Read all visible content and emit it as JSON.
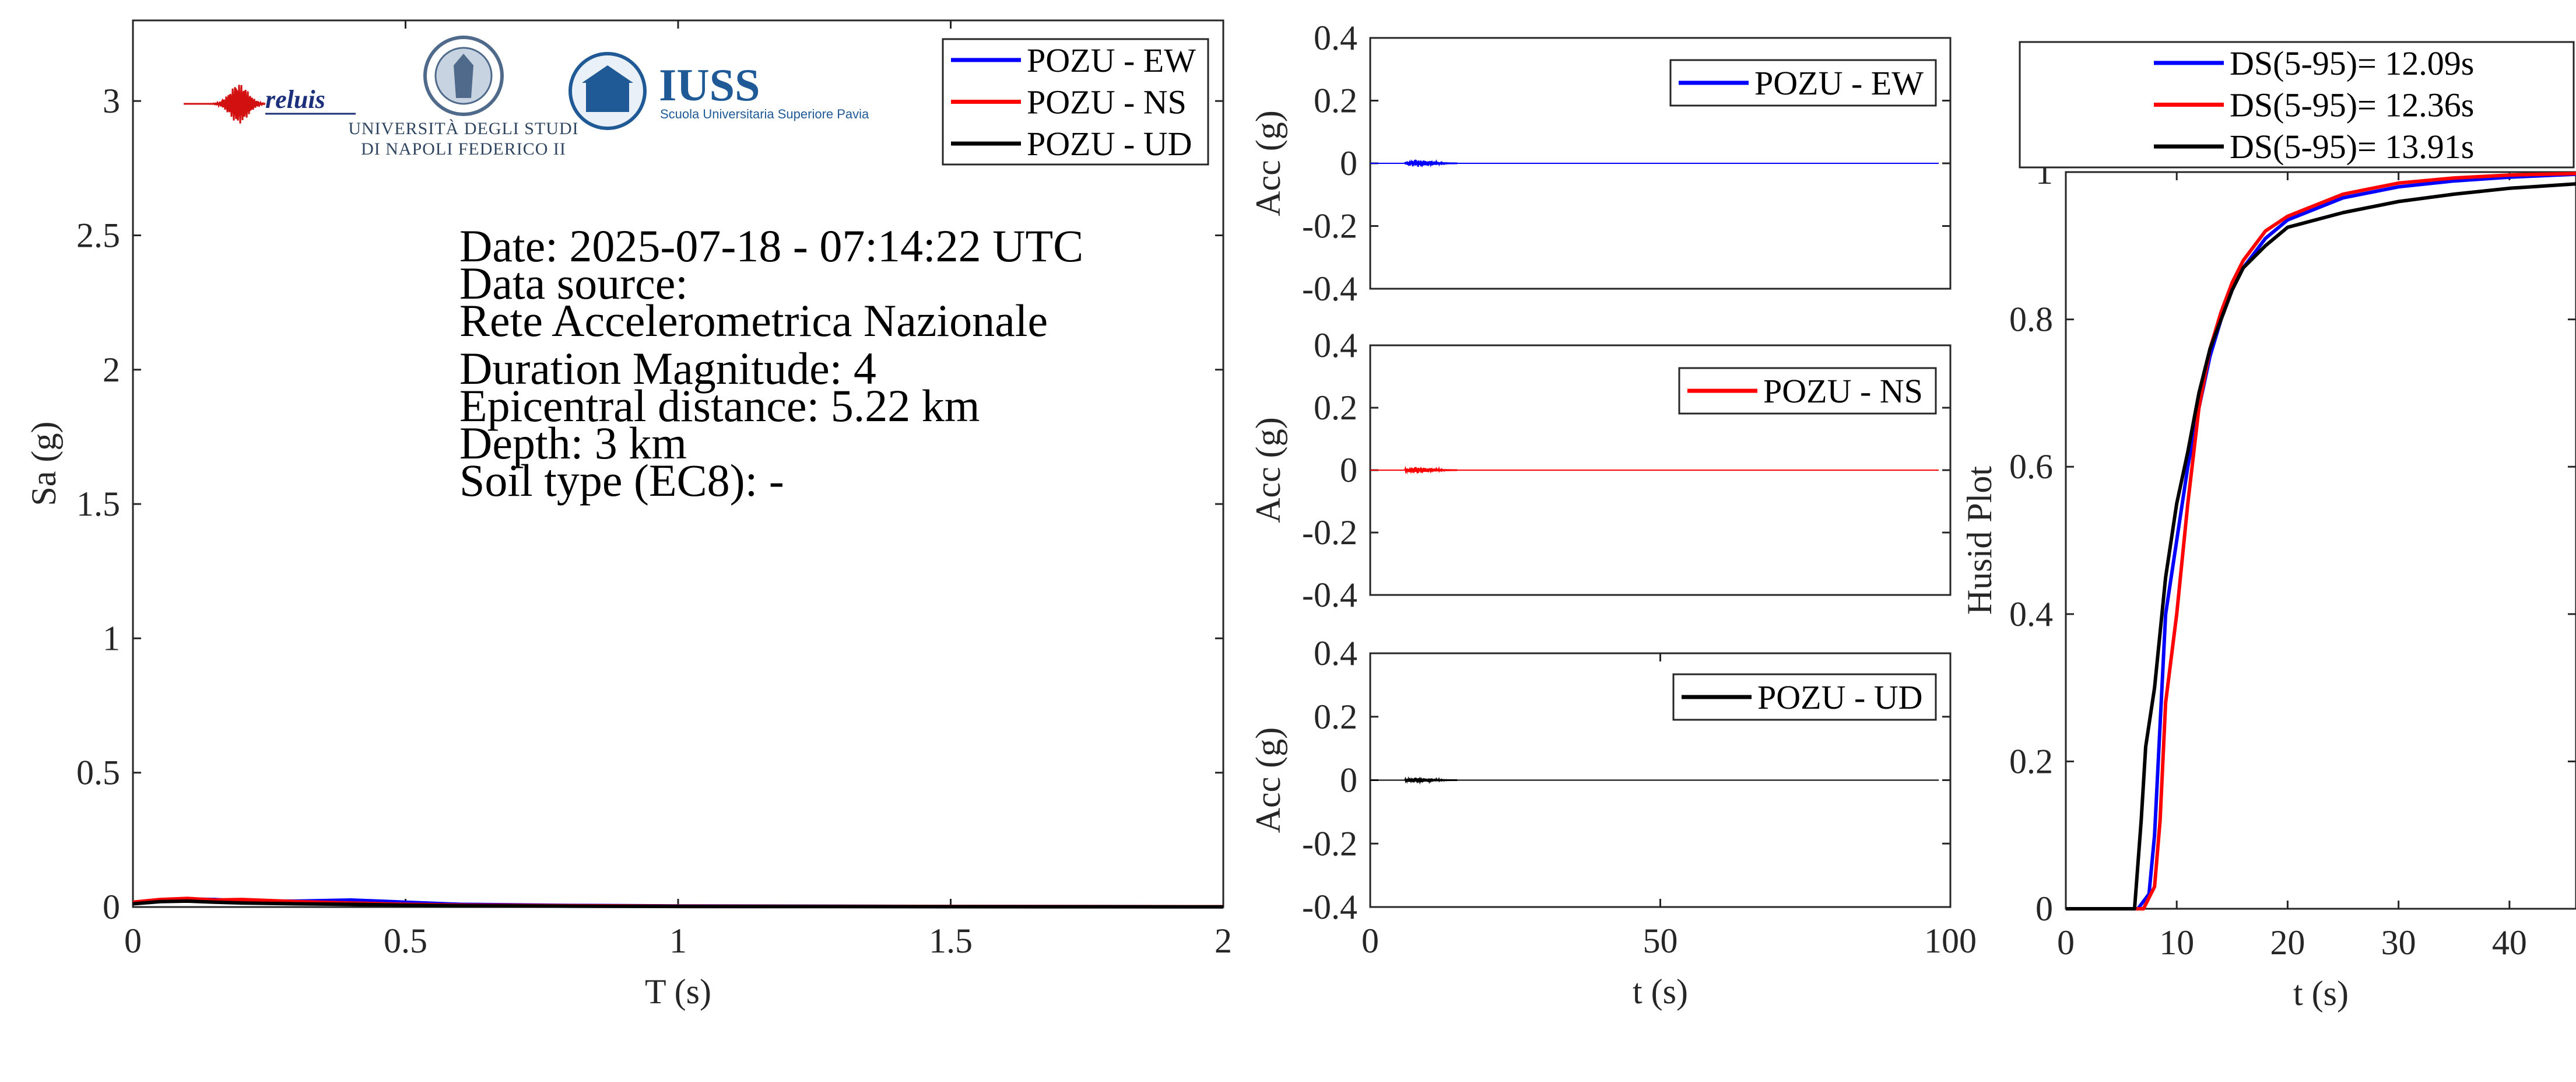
{
  "colors": {
    "ew": "#0000ff",
    "ns": "#ff0000",
    "ud": "#000000",
    "axis": "#262626",
    "iuss": "#1f5a96"
  },
  "logos": {
    "reluis": "reluis",
    "unina_line1": "UNIVERSITÀ DEGLI STUDI",
    "unina_line2": "DI NAPOLI FEDERICO II",
    "iuss_name": "IUSS",
    "iuss_sub": "Scuola Universitaria Superiore Pavia"
  },
  "info": {
    "date": "Date: 2025-07-18 - 07:14:22 UTC",
    "source_label": "Data source:",
    "source_value": "Rete Accelerometrica Nazionale",
    "magnitude": "Duration Magnitude: 4",
    "distance": "Epicentral distance: 5.22 km",
    "depth": "Depth: 3 km",
    "soil": "Soil type (EC8): -"
  },
  "chart_data": [
    {
      "id": "spectrum",
      "type": "line",
      "xlabel": "T (s)",
      "ylabel": "Sa (g)",
      "xlim": [
        0,
        2
      ],
      "ylim": [
        0,
        3.3
      ],
      "xticks": [
        0,
        0.5,
        1,
        1.5,
        2
      ],
      "xtick_labels": [
        "0",
        "0.5",
        "1",
        "1.5",
        "2"
      ],
      "yticks": [
        0,
        0.5,
        1,
        1.5,
        2,
        2.5,
        3
      ],
      "ytick_labels": [
        "0",
        "0.5",
        "1",
        "1.5",
        "2",
        "2.5",
        "3"
      ],
      "legend": "top-right",
      "series": [
        {
          "name": "POZU - EW",
          "color": "#0000ff",
          "x": [
            0,
            0.05,
            0.1,
            0.15,
            0.2,
            0.3,
            0.4,
            0.5,
            0.6,
            0.8,
            1.0,
            1.5,
            2.0
          ],
          "y": [
            0.015,
            0.022,
            0.03,
            0.028,
            0.022,
            0.022,
            0.026,
            0.018,
            0.01,
            0.006,
            0.004,
            0.002,
            0.001
          ]
        },
        {
          "name": "POZU - NS",
          "color": "#ff0000",
          "x": [
            0,
            0.05,
            0.1,
            0.15,
            0.2,
            0.3,
            0.4,
            0.5,
            0.6,
            0.8,
            1.0,
            1.5,
            2.0
          ],
          "y": [
            0.018,
            0.028,
            0.032,
            0.026,
            0.028,
            0.02,
            0.015,
            0.01,
            0.007,
            0.005,
            0.003,
            0.002,
            0.001
          ]
        },
        {
          "name": "POZU - UD",
          "color": "#000000",
          "x": [
            0,
            0.05,
            0.1,
            0.15,
            0.2,
            0.3,
            0.4,
            0.5,
            0.6,
            0.8,
            1.0,
            1.5,
            2.0
          ],
          "y": [
            0.012,
            0.02,
            0.022,
            0.018,
            0.015,
            0.012,
            0.01,
            0.007,
            0.005,
            0.003,
            0.002,
            0.001,
            0.0005
          ]
        }
      ]
    },
    {
      "id": "acc_ew",
      "type": "line",
      "ylabel": "Acc (g)",
      "xlim": [
        0,
        100
      ],
      "ylim": [
        -0.4,
        0.4
      ],
      "yticks": [
        -0.4,
        -0.2,
        0,
        0.2,
        0.4
      ],
      "ytick_labels": [
        "-0.4",
        "-0.2",
        "0",
        "0.2",
        "0.4"
      ],
      "legend": "top-right",
      "series": [
        {
          "name": "POZU - EW",
          "color": "#0000ff",
          "burst_start": 6,
          "burst_end": 15,
          "peak": 0.012
        }
      ]
    },
    {
      "id": "acc_ns",
      "type": "line",
      "ylabel": "Acc (g)",
      "xlim": [
        0,
        100
      ],
      "ylim": [
        -0.4,
        0.4
      ],
      "yticks": [
        -0.4,
        -0.2,
        0,
        0.2,
        0.4
      ],
      "ytick_labels": [
        "-0.4",
        "-0.2",
        "0",
        "0.2",
        "0.4"
      ],
      "legend": "top-right",
      "series": [
        {
          "name": "POZU - NS",
          "color": "#ff0000",
          "burst_start": 6,
          "burst_end": 15,
          "peak": 0.01
        }
      ]
    },
    {
      "id": "acc_ud",
      "type": "line",
      "ylabel": "Acc (g)",
      "xlabel": "t (s)",
      "xlim": [
        0,
        100
      ],
      "ylim": [
        -0.4,
        0.4
      ],
      "xticks": [
        0,
        50,
        100
      ],
      "xtick_labels": [
        "0",
        "50",
        "100"
      ],
      "yticks": [
        -0.4,
        -0.2,
        0,
        0.2,
        0.4
      ],
      "ytick_labels": [
        "-0.4",
        "-0.2",
        "0",
        "0.2",
        "0.4"
      ],
      "legend": "top-right",
      "series": [
        {
          "name": "POZU - UD",
          "color": "#000000",
          "burst_start": 6,
          "burst_end": 15,
          "peak": 0.008
        }
      ]
    },
    {
      "id": "husid",
      "type": "line",
      "xlabel": "t (s)",
      "ylabel": "Husid Plot",
      "xlim": [
        0,
        46
      ],
      "ylim": [
        0,
        1
      ],
      "xticks": [
        0,
        10,
        20,
        30,
        40
      ],
      "xtick_labels": [
        "0",
        "10",
        "20",
        "30",
        "40"
      ],
      "yticks": [
        0,
        0.2,
        0.4,
        0.6,
        0.8,
        1
      ],
      "ytick_labels": [
        "0",
        "0.2",
        "0.4",
        "0.6",
        "0.8",
        "1"
      ],
      "legend": "top",
      "series": [
        {
          "name": "DS(5-95)= 12.09s",
          "color": "#0000ff",
          "x": [
            0,
            6.5,
            7.5,
            8,
            8.5,
            9,
            10,
            11,
            12,
            13,
            14,
            15,
            16,
            18,
            20,
            25,
            30,
            35,
            40,
            46
          ],
          "y": [
            0,
            0,
            0.02,
            0.1,
            0.25,
            0.4,
            0.5,
            0.6,
            0.68,
            0.75,
            0.8,
            0.84,
            0.87,
            0.91,
            0.935,
            0.965,
            0.98,
            0.988,
            0.993,
            0.997
          ]
        },
        {
          "name": "DS(5-95)= 12.36s",
          "color": "#ff0000",
          "x": [
            0,
            7,
            8,
            8.5,
            9,
            10,
            11,
            12,
            13,
            14,
            15,
            16,
            18,
            20,
            25,
            30,
            35,
            40,
            46
          ],
          "y": [
            0,
            0,
            0.03,
            0.12,
            0.28,
            0.4,
            0.55,
            0.68,
            0.76,
            0.81,
            0.85,
            0.88,
            0.92,
            0.94,
            0.97,
            0.985,
            0.992,
            0.996,
            0.998
          ]
        },
        {
          "name": "DS(5-95)= 13.91s",
          "color": "#000000",
          "x": [
            0,
            6.2,
            6.8,
            7.2,
            8,
            9,
            10,
            11,
            12,
            13,
            14,
            15,
            16,
            18,
            20,
            25,
            30,
            35,
            40,
            46
          ],
          "y": [
            0,
            0,
            0.12,
            0.22,
            0.3,
            0.45,
            0.55,
            0.62,
            0.7,
            0.76,
            0.8,
            0.84,
            0.87,
            0.9,
            0.925,
            0.945,
            0.96,
            0.97,
            0.978,
            0.984
          ]
        }
      ]
    }
  ]
}
